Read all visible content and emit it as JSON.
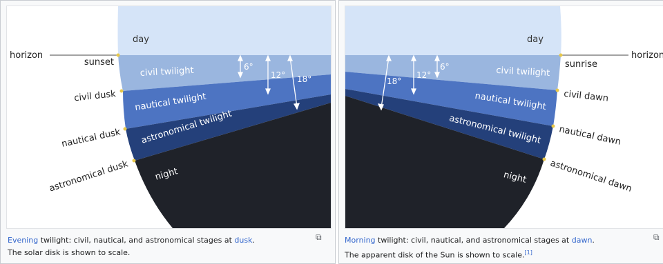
{
  "left_figure": {
    "labels": {
      "day": "day",
      "horizon": "horizon",
      "sunset": "sunset",
      "civil_dusk": "civil dusk",
      "nautical_dusk": "nautical dusk",
      "astronomical_dusk": "astronomical dusk",
      "civil_twilight": "civil twilight",
      "nautical_twilight": "nautical twilight",
      "astronomical_twilight": "astronomical twilight",
      "night": "night",
      "deg6": "6°",
      "deg12": "12°",
      "deg18": "18°"
    },
    "caption": {
      "link1": "Evening",
      "text1": " twilight: civil, nautical, and astronomical stages at ",
      "link2": "dusk",
      "text2": ".",
      "line2": "The solar disk is shown to scale."
    }
  },
  "right_figure": {
    "labels": {
      "day": "day",
      "horizon": "horizon",
      "sunrise": "sunrise",
      "civil_dawn": "civil dawn",
      "nautical_dawn": "nautical dawn",
      "astronomical_dawn": "astronomical dawn",
      "civil_twilight": "civil twilight",
      "nautical_twilight": "nautical twilight",
      "astronomical_twilight": "astronomical twilight",
      "night": "night",
      "deg6": "6°",
      "deg12": "12°",
      "deg18": "18°"
    },
    "caption": {
      "link1": "Morning",
      "text1": " twilight: civil, nautical, and astronomical stages at ",
      "link2": "dawn",
      "text2": ".",
      "line2": "The apparent disk of the Sun is shown to scale.",
      "ref": "[1]"
    }
  },
  "enlarge_icon": "enlarge-icon",
  "colors": {
    "day": "#d5e4f8",
    "civil": "#9ab6df",
    "nautical": "#4d74c2",
    "astronomical": "#24407a",
    "night": "#1f2229",
    "link": "#3366cc"
  }
}
